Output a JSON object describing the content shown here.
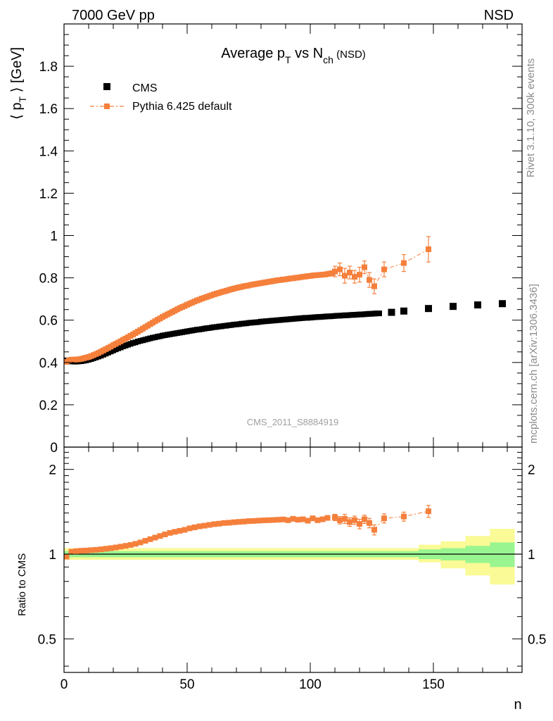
{
  "header": {
    "left": "7000 GeV pp",
    "right": "NSD"
  },
  "side_text": {
    "rivet": "Rivet 3.1.10,  300k events",
    "mcplots": "mcplots.cern.ch [arXiv:1306.3436]"
  },
  "chart_data": [
    {
      "type": "scatter",
      "panel": "main",
      "title": "Average p_T vs N_ch (NSD)",
      "title_parts": {
        "main": "Average p",
        "sub1": "T",
        "mid": " vs N",
        "sub2": "ch",
        "tail": " (NSD)"
      },
      "ylabel_parts": {
        "left": "⟨ p",
        "sub": "T",
        "right": " ⟩ [GeV]"
      },
      "watermark": "CMS_2011_S8884919",
      "xlim": [
        0,
        186
      ],
      "ylim": [
        0,
        2.0
      ],
      "yticks": [
        0,
        0.2,
        0.4,
        0.6,
        0.8,
        1,
        1.2,
        1.4,
        1.6,
        1.8
      ],
      "ytick_labels": [
        "0",
        "0.2",
        "0.4",
        "0.6",
        "0.8",
        "1",
        "1.2",
        "1.4",
        "1.6",
        "1.8"
      ],
      "legend": [
        {
          "name": "CMS",
          "color": "#000000"
        },
        {
          "name": "Pythia 6.425 default",
          "color": "#f5803c"
        }
      ],
      "series": [
        {
          "name": "CMS",
          "color": "#000000",
          "x": [
            1,
            2,
            3,
            4,
            5,
            6,
            7,
            8,
            9,
            10,
            11,
            12,
            13,
            14,
            15,
            16,
            17,
            18,
            19,
            20,
            21,
            22,
            23,
            24,
            25,
            26,
            27,
            28,
            29,
            30,
            31,
            32,
            33,
            34,
            35,
            36,
            37,
            38,
            39,
            40,
            41,
            42,
            43,
            44,
            45,
            46,
            47,
            48,
            49,
            50,
            51,
            52,
            53,
            54,
            55,
            56,
            57,
            58,
            59,
            60,
            61,
            62,
            63,
            64,
            65,
            66,
            67,
            68,
            69,
            70,
            71,
            72,
            73,
            74,
            75,
            76,
            77,
            78,
            79,
            80,
            81,
            82,
            83,
            84,
            85,
            86,
            87,
            88,
            89,
            90,
            91,
            92,
            93,
            94,
            95,
            96,
            97,
            98,
            99,
            100,
            101,
            102,
            103,
            104,
            105,
            106,
            107,
            108,
            109,
            110,
            111,
            112,
            113,
            114,
            115,
            116,
            117,
            118,
            119,
            120,
            121,
            122,
            123,
            124,
            125,
            126,
            127,
            128,
            133,
            138,
            148,
            158,
            168,
            178
          ],
          "y": [
            0.41,
            0.406,
            0.405,
            0.404,
            0.404,
            0.405,
            0.406,
            0.408,
            0.41,
            0.413,
            0.416,
            0.42,
            0.424,
            0.428,
            0.432,
            0.437,
            0.442,
            0.447,
            0.452,
            0.457,
            0.462,
            0.467,
            0.471,
            0.476,
            0.48,
            0.484,
            0.488,
            0.492,
            0.495,
            0.499,
            0.502,
            0.505,
            0.508,
            0.511,
            0.514,
            0.517,
            0.519,
            0.522,
            0.524,
            0.527,
            0.529,
            0.531,
            0.533,
            0.535,
            0.537,
            0.539,
            0.541,
            0.543,
            0.545,
            0.547,
            0.549,
            0.551,
            0.553,
            0.555,
            0.556,
            0.558,
            0.56,
            0.562,
            0.563,
            0.565,
            0.567,
            0.568,
            0.57,
            0.571,
            0.573,
            0.574,
            0.576,
            0.577,
            0.579,
            0.58,
            0.581,
            0.583,
            0.584,
            0.585,
            0.587,
            0.588,
            0.589,
            0.59,
            0.591,
            0.593,
            0.594,
            0.595,
            0.596,
            0.597,
            0.598,
            0.599,
            0.6,
            0.601,
            0.602,
            0.603,
            0.604,
            0.605,
            0.606,
            0.607,
            0.608,
            0.609,
            0.61,
            0.611,
            0.611,
            0.612,
            0.613,
            0.614,
            0.615,
            0.615,
            0.616,
            0.617,
            0.618,
            0.618,
            0.619,
            0.62,
            0.621,
            0.621,
            0.622,
            0.623,
            0.623,
            0.624,
            0.625,
            0.625,
            0.626,
            0.627,
            0.627,
            0.628,
            0.629,
            0.63,
            0.63,
            0.631,
            0.632,
            0.632,
            0.637,
            0.643,
            0.655,
            0.665,
            0.672,
            0.678
          ]
        },
        {
          "name": "Pythia 6.425 default",
          "color": "#f5803c",
          "x": [
            1,
            2,
            3,
            4,
            5,
            6,
            7,
            8,
            9,
            10,
            11,
            12,
            13,
            14,
            15,
            16,
            17,
            18,
            19,
            20,
            21,
            22,
            23,
            24,
            25,
            26,
            27,
            28,
            29,
            30,
            31,
            32,
            33,
            34,
            35,
            36,
            37,
            38,
            39,
            40,
            41,
            42,
            43,
            44,
            45,
            46,
            47,
            48,
            49,
            50,
            51,
            52,
            53,
            54,
            55,
            56,
            57,
            58,
            59,
            60,
            61,
            62,
            63,
            64,
            65,
            66,
            67,
            68,
            69,
            70,
            71,
            72,
            73,
            74,
            75,
            76,
            77,
            78,
            79,
            80,
            81,
            82,
            83,
            84,
            85,
            86,
            87,
            88,
            89,
            90,
            91,
            92,
            93,
            94,
            95,
            96,
            97,
            98,
            99,
            100,
            101,
            102,
            103,
            104,
            105,
            106,
            107,
            108,
            109,
            110,
            112,
            114,
            116,
            118,
            120,
            122,
            124,
            126,
            130,
            138,
            148
          ],
          "y": [
            0.403,
            0.41,
            0.413,
            0.414,
            0.414,
            0.415,
            0.417,
            0.42,
            0.423,
            0.426,
            0.43,
            0.435,
            0.44,
            0.445,
            0.451,
            0.457,
            0.463,
            0.469,
            0.475,
            0.482,
            0.488,
            0.494,
            0.5,
            0.507,
            0.513,
            0.519,
            0.526,
            0.532,
            0.539,
            0.546,
            0.553,
            0.56,
            0.567,
            0.574,
            0.581,
            0.588,
            0.595,
            0.602,
            0.608,
            0.615,
            0.621,
            0.627,
            0.633,
            0.639,
            0.645,
            0.651,
            0.657,
            0.662,
            0.667,
            0.673,
            0.678,
            0.683,
            0.688,
            0.693,
            0.697,
            0.702,
            0.706,
            0.71,
            0.714,
            0.718,
            0.722,
            0.726,
            0.729,
            0.733,
            0.736,
            0.739,
            0.743,
            0.746,
            0.749,
            0.752,
            0.755,
            0.757,
            0.76,
            0.762,
            0.764,
            0.767,
            0.769,
            0.771,
            0.773,
            0.775,
            0.777,
            0.779,
            0.781,
            0.783,
            0.785,
            0.787,
            0.789,
            0.79,
            0.792,
            0.793,
            0.795,
            0.797,
            0.798,
            0.8,
            0.801,
            0.803,
            0.805,
            0.806,
            0.808,
            0.809,
            0.811,
            0.812,
            0.813,
            0.814,
            0.815,
            0.816,
            0.818,
            0.82,
            0.822,
            0.83,
            0.84,
            0.81,
            0.825,
            0.805,
            0.815,
            0.85,
            0.79,
            0.76,
            0.84,
            0.87,
            0.935
          ],
          "err_x": [
            110,
            112,
            114,
            116,
            118,
            120,
            122,
            124,
            126,
            130,
            138,
            148
          ],
          "err_y": [
            0.025,
            0.03,
            0.035,
            0.03,
            0.03,
            0.035,
            0.03,
            0.035,
            0.035,
            0.035,
            0.04,
            0.06
          ]
        }
      ]
    },
    {
      "type": "scatter",
      "panel": "ratio",
      "ylabel": "Ratio to CMS",
      "xlabel": "n",
      "xlim": [
        0,
        186
      ],
      "ylim": [
        0.38,
        2.4
      ],
      "yscale": "log",
      "xticks": [
        0,
        50,
        100,
        150
      ],
      "xtick_labels": [
        "0",
        "50",
        "100",
        "150"
      ],
      "yticks": [
        0.5,
        1,
        2
      ],
      "ytick_labels": [
        "0.5",
        "1",
        "2"
      ],
      "band_colors": {
        "inner": "#99f58f",
        "outer": "#fafa96"
      },
      "bands": [
        {
          "x0": 0,
          "x1": 144,
          "inner": [
            0.975,
            1.025
          ],
          "outer": [
            0.955,
            1.05
          ]
        },
        {
          "x0": 144,
          "x1": 153,
          "inner": [
            0.96,
            1.04
          ],
          "outer": [
            0.935,
            1.08
          ]
        },
        {
          "x0": 153,
          "x1": 163,
          "inner": [
            0.95,
            1.05
          ],
          "outer": [
            0.89,
            1.11
          ]
        },
        {
          "x0": 163,
          "x1": 173,
          "inner": [
            0.93,
            1.07
          ],
          "outer": [
            0.84,
            1.16
          ]
        },
        {
          "x0": 173,
          "x1": 183,
          "inner": [
            0.9,
            1.1
          ],
          "outer": [
            0.78,
            1.23
          ]
        }
      ],
      "series": [
        {
          "name": "Pythia 6.425 default / CMS",
          "color": "#f5803c",
          "x": [
            1,
            3,
            5,
            7,
            9,
            11,
            13,
            15,
            17,
            19,
            21,
            23,
            25,
            27,
            29,
            31,
            33,
            35,
            37,
            39,
            41,
            43,
            45,
            47,
            49,
            51,
            53,
            55,
            57,
            59,
            61,
            63,
            65,
            67,
            69,
            71,
            73,
            75,
            77,
            79,
            81,
            83,
            85,
            87,
            89,
            91,
            93,
            95,
            97,
            99,
            101,
            103,
            105,
            107,
            110,
            112,
            114,
            116,
            118,
            120,
            122,
            124,
            126,
            130,
            138,
            148
          ],
          "y": [
            0.98,
            1.02,
            1.025,
            1.028,
            1.03,
            1.033,
            1.036,
            1.04,
            1.045,
            1.05,
            1.056,
            1.063,
            1.07,
            1.078,
            1.088,
            1.1,
            1.115,
            1.13,
            1.145,
            1.16,
            1.175,
            1.19,
            1.2,
            1.21,
            1.22,
            1.235,
            1.245,
            1.255,
            1.262,
            1.27,
            1.278,
            1.283,
            1.29,
            1.293,
            1.298,
            1.302,
            1.305,
            1.31,
            1.312,
            1.315,
            1.318,
            1.32,
            1.322,
            1.325,
            1.328,
            1.32,
            1.335,
            1.325,
            1.33,
            1.315,
            1.34,
            1.32,
            1.33,
            1.345,
            1.35,
            1.32,
            1.335,
            1.3,
            1.32,
            1.28,
            1.33,
            1.29,
            1.22,
            1.34,
            1.36,
            1.42
          ],
          "err_x": [
            110,
            112,
            114,
            116,
            118,
            120,
            122,
            124,
            126,
            130,
            138,
            148
          ],
          "err_y": [
            0.035,
            0.04,
            0.05,
            0.045,
            0.045,
            0.05,
            0.045,
            0.05,
            0.05,
            0.05,
            0.05,
            0.07
          ]
        }
      ]
    }
  ]
}
